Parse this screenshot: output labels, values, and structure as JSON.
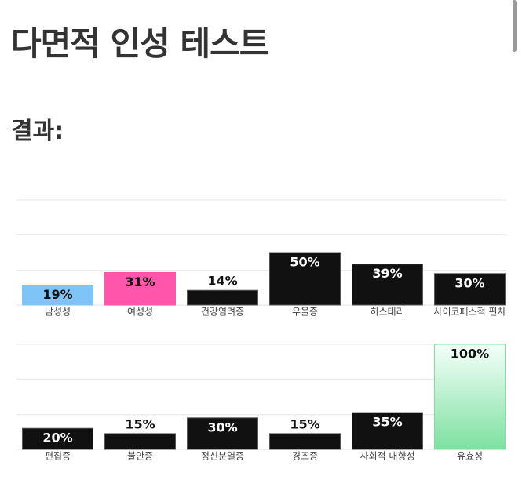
{
  "heading": "다면적 인성 테스트",
  "subheading": "결과:",
  "chart_data": [
    {
      "type": "bar",
      "categories": [
        "남성성",
        "여성성",
        "건강염려증",
        "우울증",
        "히스테리",
        "사이코패스적 편차"
      ],
      "values": [
        19,
        31,
        14,
        50,
        39,
        30
      ],
      "value_labels": [
        "19%",
        "31%",
        "14%",
        "50%",
        "39%",
        "30%"
      ],
      "colors": [
        "#7ec4f7",
        "#ff55aa",
        "#111111",
        "#111111",
        "#111111",
        "#111111"
      ],
      "ylim": [
        0,
        100
      ],
      "yticks": [
        0,
        33,
        67,
        100
      ],
      "grid": true
    },
    {
      "type": "bar",
      "categories": [
        "편집증",
        "불안증",
        "정신분열증",
        "경조증",
        "사회적 내향성",
        "유효성"
      ],
      "values": [
        20,
        15,
        30,
        15,
        35,
        100
      ],
      "value_labels": [
        "20%",
        "15%",
        "30%",
        "15%",
        "35%",
        "100%"
      ],
      "colors": [
        "#111111",
        "#111111",
        "#111111",
        "#111111",
        "#111111",
        "#7ee0a0"
      ],
      "ylim": [
        0,
        100
      ],
      "yticks": [
        0,
        33,
        67,
        100
      ],
      "grid": true
    }
  ]
}
